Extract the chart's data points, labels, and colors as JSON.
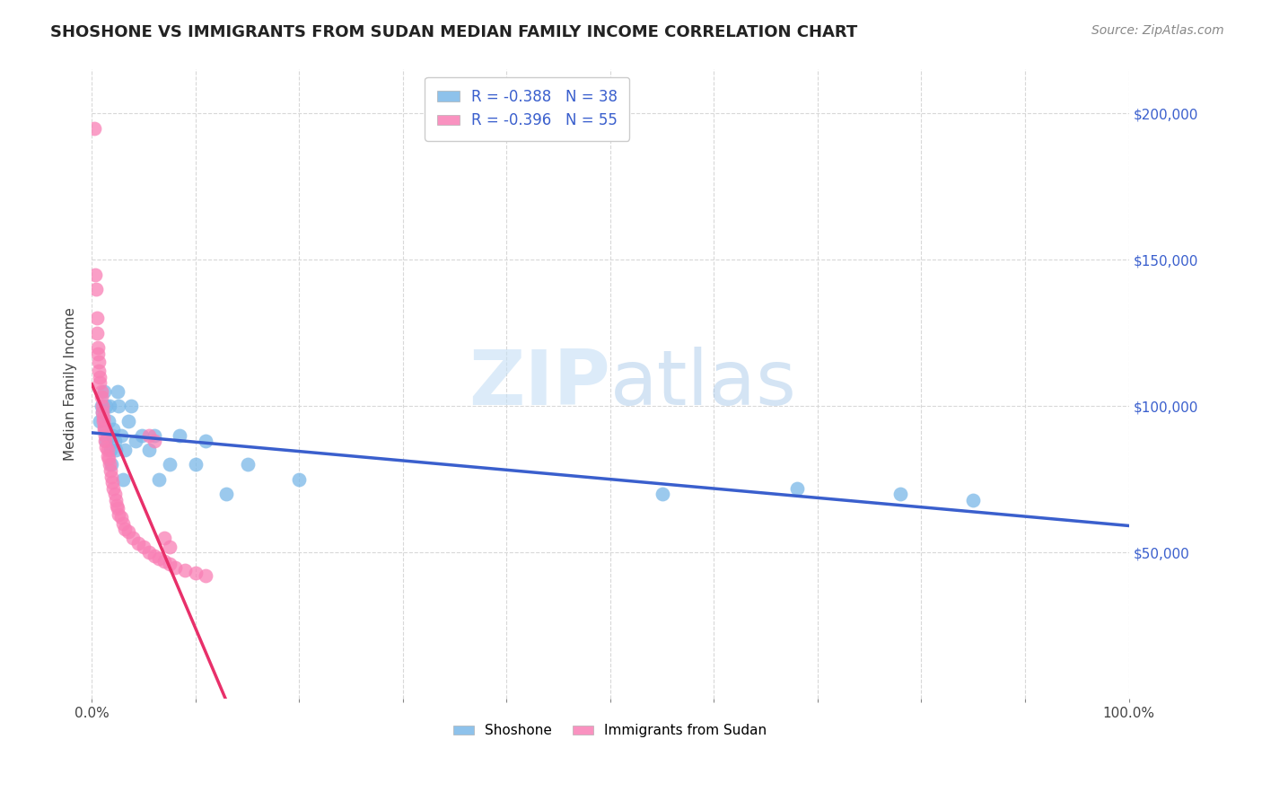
{
  "title": "SHOSHONE VS IMMIGRANTS FROM SUDAN MEDIAN FAMILY INCOME CORRELATION CHART",
  "source": "Source: ZipAtlas.com",
  "ylabel": "Median Family Income",
  "yticks": [
    50000,
    100000,
    150000,
    200000
  ],
  "ytick_labels": [
    "$50,000",
    "$100,000",
    "$150,000",
    "$200,000"
  ],
  "shoshone_color": "#7ab8e8",
  "sudan_color": "#f97fb5",
  "regression_blue": "#3a5fcd",
  "regression_pink": "#e8306a",
  "watermark_zip": "ZIP",
  "watermark_atlas": "atlas",
  "shoshone_x": [
    0.008,
    0.009,
    0.01,
    0.012,
    0.013,
    0.014,
    0.014,
    0.016,
    0.017,
    0.018,
    0.019,
    0.02,
    0.021,
    0.022,
    0.023,
    0.025,
    0.026,
    0.028,
    0.03,
    0.032,
    0.035,
    0.038,
    0.042,
    0.048,
    0.055,
    0.06,
    0.065,
    0.075,
    0.085,
    0.1,
    0.11,
    0.13,
    0.15,
    0.2,
    0.55,
    0.68,
    0.78,
    0.85
  ],
  "shoshone_y": [
    95000,
    100000,
    98000,
    105000,
    92000,
    88000,
    100000,
    95000,
    100000,
    85000,
    80000,
    90000,
    92000,
    88000,
    85000,
    105000,
    100000,
    90000,
    75000,
    85000,
    95000,
    100000,
    88000,
    90000,
    85000,
    90000,
    75000,
    80000,
    90000,
    80000,
    88000,
    70000,
    80000,
    75000,
    70000,
    72000,
    70000,
    68000
  ],
  "sudan_x": [
    0.002,
    0.003,
    0.004,
    0.005,
    0.005,
    0.006,
    0.006,
    0.007,
    0.007,
    0.008,
    0.008,
    0.009,
    0.009,
    0.01,
    0.01,
    0.011,
    0.011,
    0.012,
    0.012,
    0.013,
    0.013,
    0.014,
    0.015,
    0.015,
    0.016,
    0.017,
    0.018,
    0.019,
    0.02,
    0.021,
    0.022,
    0.023,
    0.024,
    0.025,
    0.026,
    0.028,
    0.03,
    0.032,
    0.035,
    0.04,
    0.045,
    0.05,
    0.055,
    0.06,
    0.065,
    0.07,
    0.075,
    0.08,
    0.09,
    0.1,
    0.11,
    0.055,
    0.06,
    0.07,
    0.075
  ],
  "sudan_y": [
    195000,
    145000,
    140000,
    130000,
    125000,
    120000,
    118000,
    115000,
    112000,
    110000,
    108000,
    105000,
    103000,
    100000,
    98000,
    96000,
    95000,
    93000,
    92000,
    90000,
    88000,
    86000,
    85000,
    83000,
    82000,
    80000,
    78000,
    76000,
    74000,
    72000,
    70000,
    68000,
    66000,
    65000,
    63000,
    62000,
    60000,
    58000,
    57000,
    55000,
    53000,
    52000,
    50000,
    49000,
    48000,
    47000,
    46000,
    45000,
    44000,
    43000,
    42000,
    90000,
    88000,
    55000,
    52000
  ],
  "xlim": [
    0.0,
    1.0
  ],
  "ylim": [
    0,
    215000
  ],
  "background_color": "#ffffff",
  "R_shoshone": "-0.388",
  "N_shoshone": "38",
  "R_sudan": "-0.396",
  "N_sudan": "55"
}
